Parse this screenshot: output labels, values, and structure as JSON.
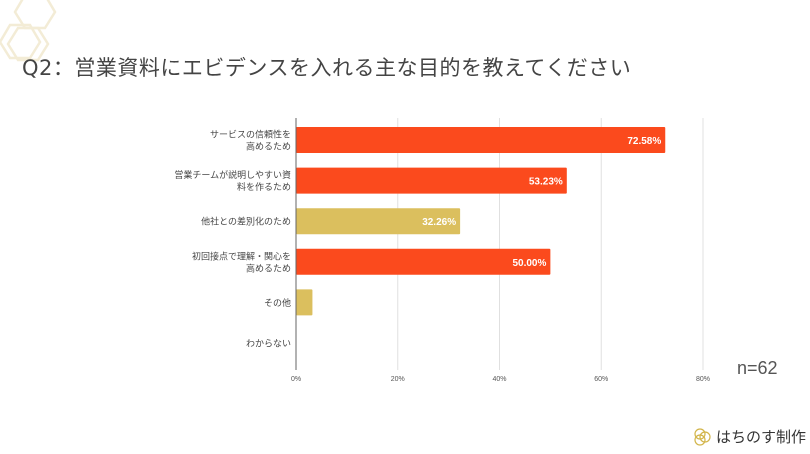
{
  "title": "Q2：営業資料にエビデンスを入れる主な目的を教えてください",
  "sample_size": "n=62",
  "brand": "はちのす制作",
  "colors": {
    "primary": "#fb4a1d",
    "secondary": "#dbbf5e",
    "grid": "#e0e0e0",
    "axis": "#666666"
  },
  "chart_data": {
    "type": "bar",
    "orientation": "horizontal",
    "categories": [
      [
        "サービスの信頼性を",
        "高めるため"
      ],
      [
        "営業チームが説明しやすい資",
        "料を作るため"
      ],
      [
        "他社との差別化のため"
      ],
      [
        "初回接点で理解・関心を",
        "高めるため"
      ],
      [
        "その他"
      ],
      [
        "わからない"
      ]
    ],
    "values": [
      72.58,
      53.23,
      32.26,
      50.0,
      3.23,
      0
    ],
    "data_labels": [
      "72.58%",
      "53.23%",
      "32.26%",
      "50.00%",
      "",
      ""
    ],
    "bar_colors": [
      "#fb4a1d",
      "#fb4a1d",
      "#dbbf5e",
      "#fb4a1d",
      "#dbbf5e",
      "#dbbf5e"
    ],
    "xlim": [
      0,
      80
    ],
    "xticks": [
      0,
      20,
      40,
      60,
      80
    ],
    "xtick_labels": [
      "0%",
      "20%",
      "40%",
      "60%",
      "80%"
    ],
    "grid": true,
    "legend": "none"
  }
}
